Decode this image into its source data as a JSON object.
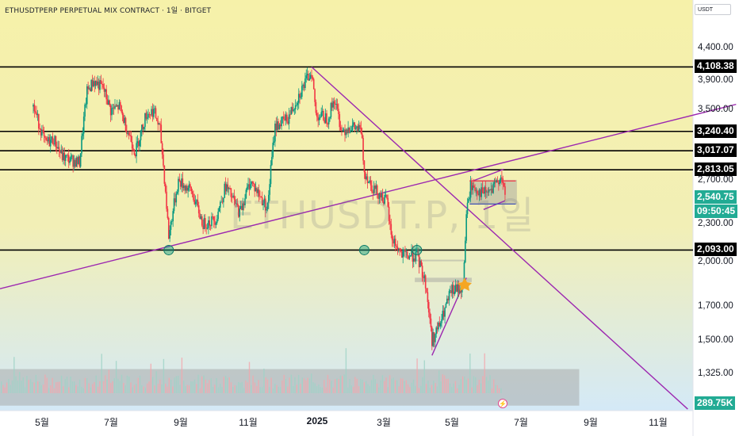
{
  "header": {
    "title": "ETHUSDTPERP PERPETUAL MIX CONTRACT · 1일 · BITGET",
    "currency": "USDT",
    "watermark": "ETHUSDT.P, 1일"
  },
  "chart_data": {
    "type": "candlestick",
    "title": "ETHUSDTPERP PERPETUAL MIX CONTRACT · 1일 · BITGET",
    "y_scale": "log",
    "y_ticks": [
      "4,400.00",
      "3,900.00",
      "3,500.00",
      "2,700.00",
      "2,300.00",
      "2,000.00",
      "1,700.00",
      "1,500.00",
      "1,325.00"
    ],
    "x_ticks": [
      "5월",
      "7월",
      "9월",
      "11월",
      "2025",
      "3월",
      "5월",
      "7월",
      "9월",
      "11월"
    ],
    "horizontal_levels": [
      "4,108.38",
      "3,240.40",
      "3,017.07",
      "2,813.05",
      "2,093.00"
    ],
    "current_price": "2,540.75",
    "countdown": "09:50:45",
    "volume": "289.75K",
    "colors": {
      "up": "#089981",
      "down": "#f23645",
      "trendline": "#9c27b0",
      "background_top": "#f6f1a9",
      "background_bottom": "#d4e9f7"
    },
    "ohlc_path": [
      [
        "2024-04-01",
        3550
      ],
      [
        "2024-04-12",
        3100
      ],
      [
        "2024-04-20",
        3150
      ],
      [
        "2024-04-28",
        2950
      ],
      [
        "2024-05-10",
        2900
      ],
      [
        "2024-05-14",
        2890
      ],
      [
        "2024-05-21",
        3750
      ],
      [
        "2024-05-27",
        3900
      ],
      [
        "2024-06-05",
        3800
      ],
      [
        "2024-06-12",
        3500
      ],
      [
        "2024-06-20",
        3550
      ],
      [
        "2024-06-25",
        3350
      ],
      [
        "2024-07-05",
        3000
      ],
      [
        "2024-07-15",
        3450
      ],
      [
        "2024-07-22",
        3500
      ],
      [
        "2024-07-28",
        3250
      ],
      [
        "2024-08-05",
        2200
      ],
      [
        "2024-08-14",
        2700
      ],
      [
        "2024-08-26",
        2600
      ],
      [
        "2024-09-06",
        2300
      ],
      [
        "2024-09-18",
        2350
      ],
      [
        "2024-09-27",
        2650
      ],
      [
        "2024-10-10",
        2400
      ],
      [
        "2024-10-20",
        2700
      ],
      [
        "2024-11-01",
        2500
      ],
      [
        "2024-11-05",
        2450
      ],
      [
        "2024-11-12",
        3300
      ],
      [
        "2024-11-24",
        3400
      ],
      [
        "2024-12-04",
        3700
      ],
      [
        "2024-12-16",
        4050
      ],
      [
        "2024-12-20",
        3450
      ],
      [
        "2024-12-31",
        3400
      ],
      [
        "2025-01-06",
        3650
      ],
      [
        "2025-01-13",
        3250
      ],
      [
        "2025-01-21",
        3300
      ],
      [
        "2025-01-31",
        3250
      ],
      [
        "2025-02-03",
        2800
      ],
      [
        "2025-02-10",
        2650
      ],
      [
        "2025-02-24",
        2500
      ],
      [
        "2025-02-28",
        2200
      ],
      [
        "2025-03-10",
        2050
      ],
      [
        "2025-03-24",
        2050
      ],
      [
        "2025-04-01",
        1850
      ],
      [
        "2025-04-07",
        1500
      ],
      [
        "2025-04-15",
        1600
      ],
      [
        "2025-04-25",
        1800
      ],
      [
        "2025-05-06",
        1820
      ],
      [
        "2025-05-09",
        2380
      ],
      [
        "2025-05-13",
        2650
      ],
      [
        "2025-05-24",
        2580
      ],
      [
        "2025-06-02",
        2600
      ],
      [
        "2025-06-10",
        2760
      ],
      [
        "2025-06-14",
        2540
      ]
    ],
    "circles": [
      [
        "2024-08-05",
        2093
      ],
      [
        "2025-02-03",
        2093
      ],
      [
        "2025-03-24",
        2093
      ]
    ],
    "trendlines": [
      [
        [
          "2024-03-01",
          1815
        ],
        [
          "2026-01-15",
          3580
        ]
      ],
      [
        [
          "2024-12-16",
          4108
        ],
        [
          "2025-12-01",
          1165
        ]
      ],
      [
        [
          "2025-04-07",
          1420
        ],
        [
          "2025-05-09",
          1890
        ]
      ],
      [
        [
          "2025-05-25",
          2430
        ],
        [
          "2025-06-14",
          2510
        ]
      ],
      [
        [
          "2025-05-15",
          2700
        ],
        [
          "2025-06-13",
          2820
        ]
      ]
    ],
    "zones": [
      {
        "x0": "2025-03-22",
        "x1": "2025-05-14",
        "y0": 1860,
        "y1": 1890,
        "color": "#9e9e9e"
      },
      {
        "x0": "2025-03-22",
        "x1": "2025-05-08",
        "y0": 2010,
        "y1": 2020,
        "color": "#9e9e9e"
      },
      {
        "x0": "2025-05-12",
        "x1": "2025-06-25",
        "y0": 2480,
        "y1": 2710,
        "color": "#9e9e9e"
      },
      {
        "x0": "2024-03-01",
        "x1": "2025-08-22",
        "y0": 1180,
        "y1": 1350,
        "color": "#9e9e9e"
      }
    ]
  }
}
